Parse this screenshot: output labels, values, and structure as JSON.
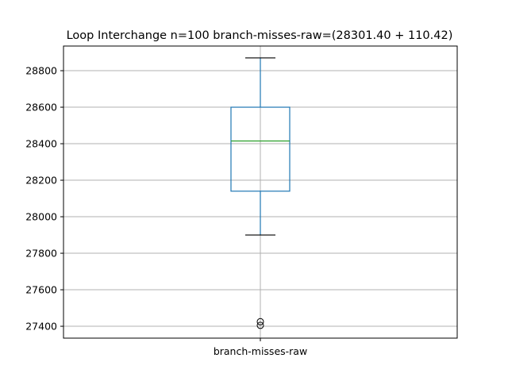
{
  "chart_data": {
    "type": "box",
    "title": "Loop Interchange n=100  branch-misses-raw=(28301.40 + 110.42)",
    "categories": [
      "branch-misses-raw"
    ],
    "yticks": [
      27400,
      27600,
      27800,
      28000,
      28200,
      28400,
      28600,
      28800
    ],
    "ylim": [
      27335,
      28935
    ],
    "grid": true,
    "boxes": [
      {
        "name": "branch-misses-raw",
        "whisker_low": 27900,
        "q1": 28140,
        "median": 28415,
        "q3": 28600,
        "whisker_high": 28870,
        "outliers": [
          27425,
          27405
        ]
      }
    ],
    "colors": {
      "box": "#1f77b4",
      "median": "#2ca02c",
      "caps": "#000000",
      "grid": "#b0b0b0"
    }
  }
}
